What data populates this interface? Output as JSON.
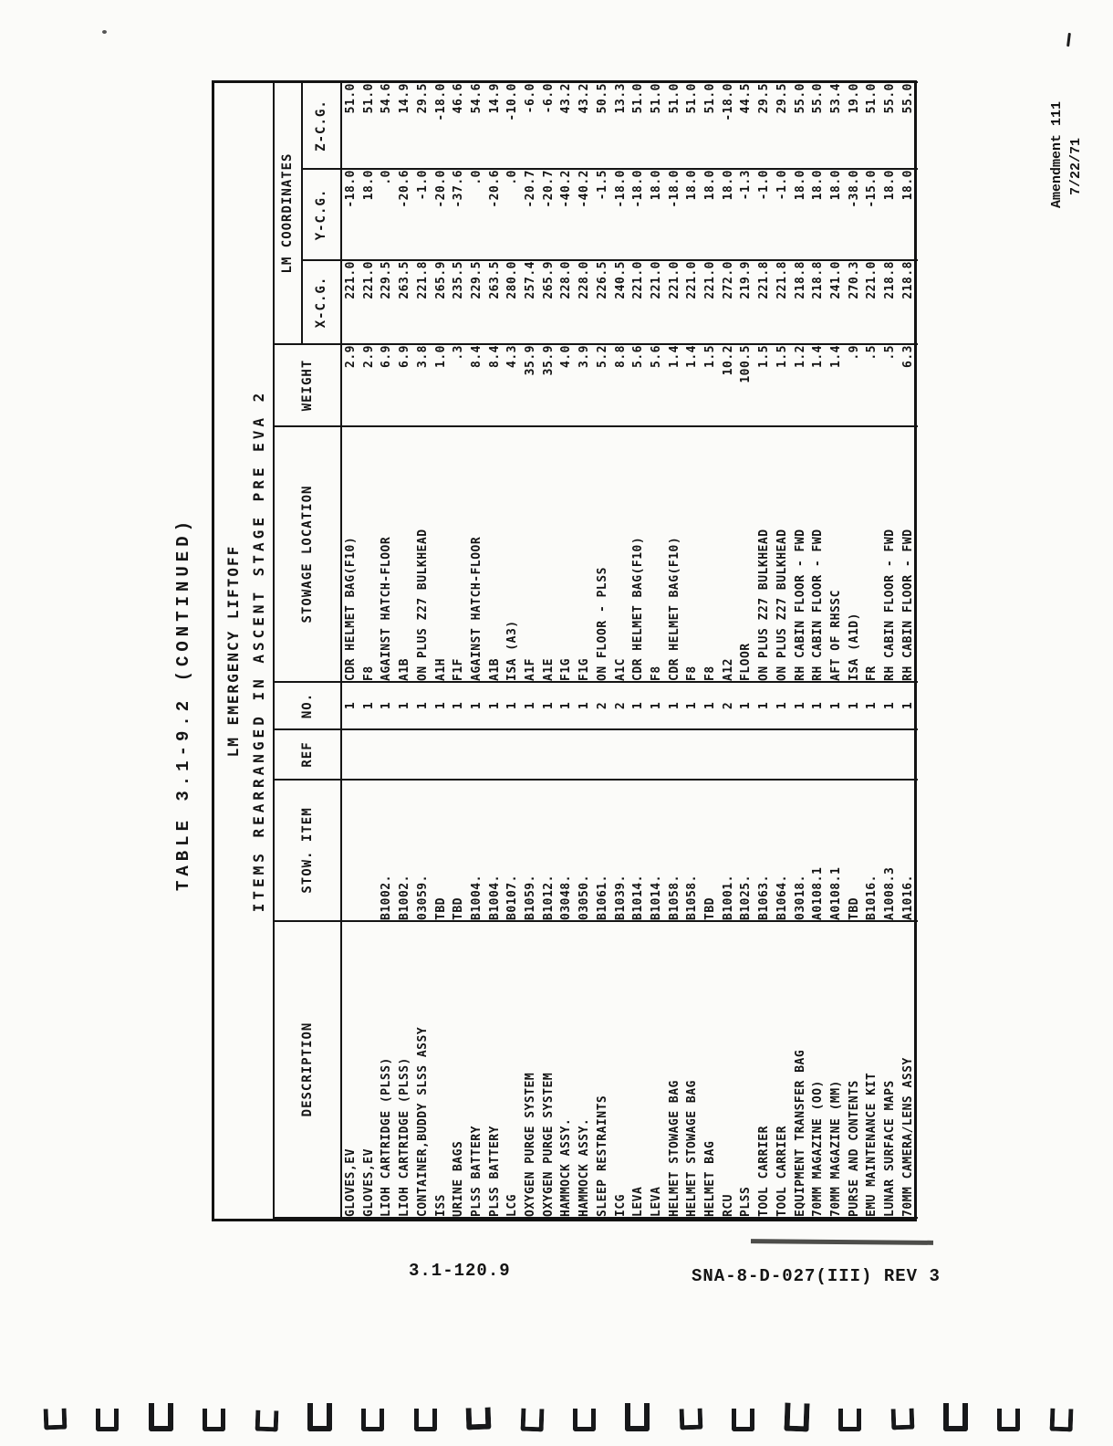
{
  "page": {
    "amendment_line1": "Amendment 111",
    "amendment_line2": "7/22/71",
    "caption": "TABLE 3.1-9.2 (CONTINUED)",
    "footer_left": "3.1-120.9",
    "footer_right": "SNA-8-D-027(III) REV 3",
    "binder_mark_count": 20
  },
  "table": {
    "title_line1": "LM EMERGENCY LIFTOFF",
    "title_line2": "ITEMS REARRANGED IN ASCENT STAGE PRE EVA 2",
    "coord_group": "LM COORDINATES",
    "headers": [
      "DESCRIPTION",
      "STOW. ITEM",
      "REF",
      "NO.",
      "STOWAGE LOCATION",
      "WEIGHT"
    ],
    "coord_headers": [
      "X-C.G.",
      "Y-C.G.",
      "Z-C.G."
    ],
    "rows": [
      [
        "GLOVES,EV",
        "",
        "",
        "1",
        "CDR HELMET BAG(F10)",
        "2.9",
        "221.0",
        "-18.0",
        "51.0"
      ],
      [
        "GLOVES,EV",
        "",
        "",
        "1",
        "F8",
        "2.9",
        "221.0",
        "18.0",
        "51.0"
      ],
      [
        "LIOH CARTRIDGE (PLSS)",
        "B1002.",
        "",
        "1",
        "AGAINST HATCH-FLOOR",
        "6.9",
        "229.5",
        ".0",
        "54.6"
      ],
      [
        "LIOH CARTRIDGE (PLSS)",
        "B1002.",
        "",
        "1",
        "A1B",
        "6.9",
        "263.5",
        "-20.6",
        "14.9"
      ],
      [
        "CONTAINER,BUDDY SLSS ASSY",
        "03059.",
        "",
        "1",
        "ON PLUS Z27 BULKHEAD",
        "3.8",
        "221.8",
        "-1.0",
        "29.5"
      ],
      [
        "ISS",
        "TBD",
        "",
        "1",
        "A1H",
        "1.0",
        "265.9",
        "-20.0",
        "-18.0"
      ],
      [
        "URINE BAGS",
        "TBD",
        "",
        "1",
        "F1F",
        ".3",
        "235.5",
        "-37.6",
        "46.6"
      ],
      [
        "PLSS BATTERY",
        "B1004.",
        "",
        "1",
        "AGAINST HATCH-FLOOR",
        "8.4",
        "229.5",
        ".0",
        "54.6"
      ],
      [
        "PLSS BATTERY",
        "B1004.",
        "",
        "1",
        "A1B",
        "8.4",
        "263.5",
        "-20.6",
        "14.9"
      ],
      [
        "LCG",
        "B0107.",
        "",
        "1",
        "ISA (A3)",
        "4.3",
        "280.0",
        ".0",
        "-10.0"
      ],
      [
        "OXYGEN PURGE SYSTEM",
        "B1059.",
        "",
        "1",
        "A1F",
        "35.9",
        "257.4",
        "-20.7",
        "-6.0"
      ],
      [
        "OXYGEN PURGE SYSTEM",
        "B1012.",
        "",
        "1",
        "A1E",
        "35.9",
        "265.9",
        "-20.7",
        "-6.0"
      ],
      [
        "HAMMOCK ASSY.",
        "03048.",
        "",
        "1",
        "F1G",
        "4.0",
        "228.0",
        "-40.2",
        "43.2"
      ],
      [
        "HAMMOCK ASSY.",
        "03050.",
        "",
        "1",
        "F1G",
        "3.9",
        "228.0",
        "-40.2",
        "43.2"
      ],
      [
        "SLEEP RESTRAINTS",
        "B1061.",
        "",
        "2",
        "ON FLOOR - PLSS",
        "5.2",
        "226.5",
        "-1.5",
        "50.5"
      ],
      [
        "ICG",
        "B1039.",
        "",
        "2",
        "A1C",
        "8.8",
        "240.5",
        "-18.0",
        "13.3"
      ],
      [
        "LEVA",
        "B1014.",
        "",
        "1",
        "CDR HELMET BAG(F10)",
        "5.6",
        "221.0",
        "-18.0",
        "51.0"
      ],
      [
        "LEVA",
        "B1014.",
        "",
        "1",
        "F8",
        "5.6",
        "221.0",
        "18.0",
        "51.0"
      ],
      [
        "HELMET STOWAGE BAG",
        "B1058.",
        "",
        "1",
        "CDR HELMET BAG(F10)",
        "1.4",
        "221.0",
        "-18.0",
        "51.0"
      ],
      [
        "HELMET STOWAGE BAG",
        "B1058.",
        "",
        "1",
        "F8",
        "1.4",
        "221.0",
        "18.0",
        "51.0"
      ],
      [
        "HELMET BAG",
        "TBD",
        "",
        "1",
        "F8",
        "1.5",
        "221.0",
        "18.0",
        "51.0"
      ],
      [
        "RCU",
        "B1001.",
        "",
        "2",
        "A12",
        "10.2",
        "272.0",
        "18.0",
        "-18.0"
      ],
      [
        "PLSS",
        "B1025.",
        "",
        "1",
        "FLOOR",
        "100.5",
        "219.9",
        "-1.3",
        "44.5"
      ],
      [
        "TOOL CARRIER",
        "B1063.",
        "",
        "1",
        "ON PLUS Z27 BULKHEAD",
        "1.5",
        "221.8",
        "-1.0",
        "29.5"
      ],
      [
        "TOOL CARRIER",
        "B1064.",
        "",
        "1",
        "ON PLUS Z27 BULKHEAD",
        "1.5",
        "221.8",
        "-1.0",
        "29.5"
      ],
      [
        "EQUIPMENT TRANSFER BAG",
        "03018.",
        "",
        "1",
        "RH CABIN FLOOR - FWD",
        "1.2",
        "218.8",
        "18.0",
        "55.0"
      ],
      [
        "70MM MAGAZINE (OO)",
        "A0108.1",
        "",
        "1",
        "RH CABIN FLOOR - FWD",
        "1.4",
        "218.8",
        "18.0",
        "55.0"
      ],
      [
        "70MM MAGAZINE (MM)",
        "A0108.1",
        "",
        "1",
        "AFT OF RHSSC",
        "1.4",
        "241.0",
        "18.0",
        "53.4"
      ],
      [
        "PURSE AND CONTENTS",
        "TBD",
        "",
        "1",
        "ISA (A1D)",
        ".9",
        "270.3",
        "-38.0",
        "19.0"
      ],
      [
        "EMU MAINTENANCE KIT",
        "B1016.",
        "",
        "1",
        "FR",
        ".5",
        "221.0",
        "-15.0",
        "51.0"
      ],
      [
        "LUNAR SURFACE MAPS",
        "A1008.3",
        "",
        "1",
        "RH CABIN FLOOR - FWD",
        ".5",
        "218.8",
        "18.0",
        "55.0"
      ],
      [
        "70MM CAMERA/LENS ASSY",
        "A1016.",
        "",
        "1",
        "RH CABIN FLOOR - FWD",
        "6.3",
        "218.8",
        "18.0",
        "55.0"
      ]
    ]
  }
}
